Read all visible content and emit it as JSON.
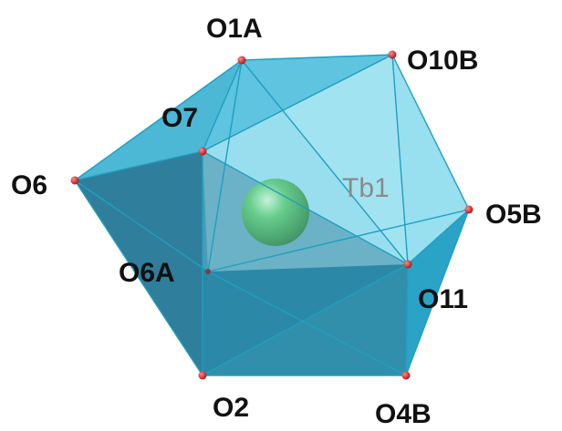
{
  "figure": {
    "center_atom": {
      "label": "Tb1",
      "color": "#22a845"
    },
    "polyhedron_color": "#2bbfe0",
    "oxygen_color": "#d61a1a",
    "atoms": {
      "O1A": "O1A",
      "O10B": "O10B",
      "O7": "O7",
      "O6": "O6",
      "O5B": "O5B",
      "O6A": "O6A",
      "O11": "O11",
      "O2": "O2",
      "O4B": "O4B"
    }
  }
}
